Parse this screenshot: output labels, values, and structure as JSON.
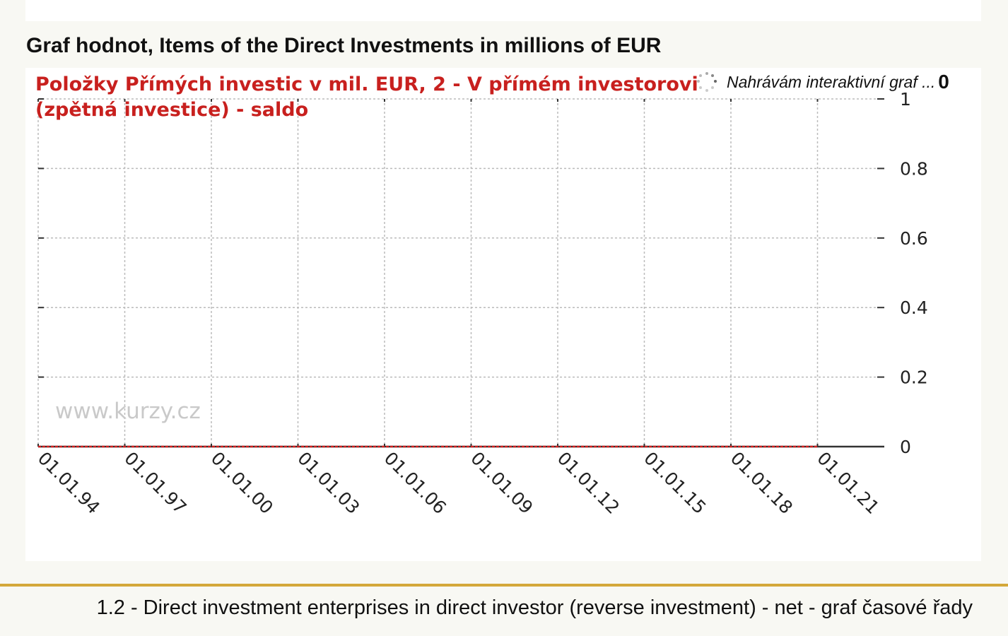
{
  "page": {
    "section_title": "Graf hodnot, Items of the Direct Investments in millions of EUR",
    "loading_text": "Nahrávám interaktivní graf ...",
    "loading_value": "0",
    "watermark": "www.kurzy.cz",
    "footer_text": "1.2 - Direct investment enterprises in direct investor (reverse investment) - net - graf časové řady"
  },
  "colors": {
    "title_red": "#c8201e",
    "series_line": "#d22020",
    "grid": "#bbbbbb",
    "accent_gold": "#d4a83a"
  },
  "chart_data": {
    "type": "line",
    "title_line1": "Položky Přímých investic v mil. EUR, 2 - V přímém investorovi",
    "title_line2": "(zpětná investice) - saldo",
    "x_ticks": [
      "01.01.94",
      "01.01.97",
      "01.01.00",
      "01.01.03",
      "01.01.06",
      "01.01.09",
      "01.01.12",
      "01.01.15",
      "01.01.18",
      "01.01.21"
    ],
    "y_ticks": [
      "0",
      "0.2",
      "0.4",
      "0.6",
      "0.8",
      "1"
    ],
    "ylim": [
      0,
      1
    ],
    "grid": true,
    "series": [
      {
        "x": [
          "01.01.94",
          "01.01.21"
        ],
        "values": [
          0,
          0
        ]
      }
    ]
  }
}
